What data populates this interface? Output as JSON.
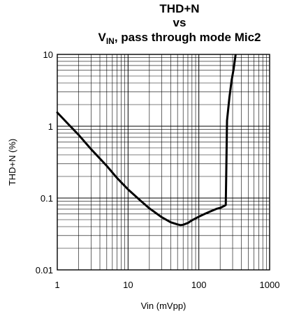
{
  "chart_data": {
    "type": "line",
    "title_lines": [
      "THD+N",
      "vs"
    ],
    "title_line3": {
      "prefix": "V",
      "subscript": "IN",
      "suffix": ", pass through mode Mic2"
    },
    "xlabel": "Vin (mVpp)",
    "ylabel": "THD+N (%)",
    "x_scale": "log",
    "y_scale": "log",
    "xlim": [
      1,
      1000
    ],
    "ylim": [
      0.01,
      10
    ],
    "x_ticks": [
      {
        "value": 1,
        "label": "1"
      },
      {
        "value": 10,
        "label": "10"
      },
      {
        "value": 100,
        "label": "100"
      },
      {
        "value": 1000,
        "label": "1000"
      }
    ],
    "y_ticks": [
      {
        "value": 0.01,
        "label": "0.01"
      },
      {
        "value": 0.1,
        "label": "0.1"
      },
      {
        "value": 1,
        "label": "1"
      },
      {
        "value": 10,
        "label": "10"
      }
    ],
    "grid": true,
    "series": [
      {
        "color": "#000000",
        "x": [
          1,
          1.5,
          2,
          3,
          5,
          7,
          10,
          15,
          20,
          30,
          40,
          50,
          55,
          60,
          70,
          80,
          100,
          120,
          150,
          180,
          200,
          230,
          240,
          245,
          250,
          270,
          290,
          310,
          330
        ],
        "y": [
          1.55,
          1.02,
          0.76,
          0.48,
          0.28,
          0.19,
          0.132,
          0.092,
          0.072,
          0.054,
          0.046,
          0.043,
          0.042,
          0.0425,
          0.045,
          0.049,
          0.055,
          0.06,
          0.066,
          0.071,
          0.073,
          0.078,
          0.08,
          0.3,
          1.2,
          2.5,
          4.3,
          6.3,
          9.8
        ]
      }
    ]
  }
}
